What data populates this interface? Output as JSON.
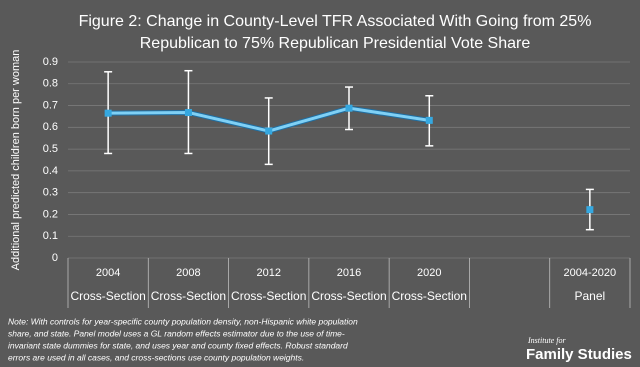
{
  "chart_data": {
    "type": "line",
    "title": [
      "Figure 2: Change in County-Level TFR Associated With Going from 25%",
      "Republican to 75% Republican Presidential Vote Share"
    ],
    "ylabel": "Additional predicted children born per woman",
    "categories": [
      "2004",
      "2008",
      "2012",
      "2016",
      "2020",
      null,
      "2004-2020"
    ],
    "groups": [
      "Cross-Section",
      "Cross-Section",
      "Cross-Section",
      "Cross-Section",
      "Cross-Section",
      null,
      "Panel"
    ],
    "values": [
      0.665,
      0.668,
      0.583,
      0.688,
      0.632,
      null,
      0.222
    ],
    "lower": [
      0.48,
      0.48,
      0.43,
      0.59,
      0.515,
      null,
      0.13
    ],
    "upper": [
      0.855,
      0.86,
      0.735,
      0.785,
      0.745,
      null,
      0.315
    ],
    "color": "#35a8e0",
    "ylim": [
      0,
      0.9
    ],
    "yticks": [
      0,
      0.1,
      0.2,
      0.3,
      0.4,
      0.5,
      0.6,
      0.7,
      0.8,
      0.9
    ],
    "grid": true,
    "note": [
      "Note: With controls for year-specific county population density, non-Hispanic white population",
      "share, and state. Panel model uses a GL random effects estimator due to the use of time-",
      "invariant state dummies for state, and uses year and county fixed effects. Robust standard",
      "errors are used in all cases, and cross-sections use county population weights."
    ],
    "source": [
      "Institute for",
      "Family Studies"
    ]
  }
}
